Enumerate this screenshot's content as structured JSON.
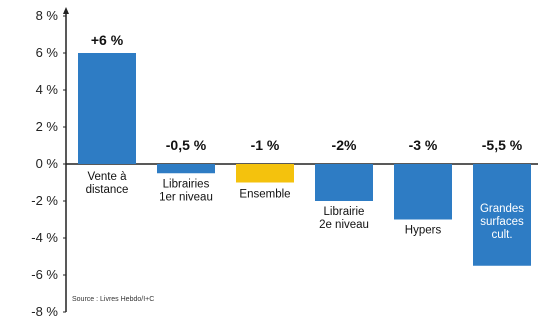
{
  "chart_data": {
    "type": "bar",
    "categories": [
      [
        "Vente à",
        "distance"
      ],
      [
        "Librairies",
        "1er niveau"
      ],
      [
        "Ensemble"
      ],
      [
        "Librairie",
        "2e niveau"
      ],
      [
        "Hypers"
      ],
      [
        "Grandes",
        "surfaces",
        "cult."
      ]
    ],
    "values": [
      6,
      -0.5,
      -1,
      -2,
      -3,
      -5.5
    ],
    "value_labels": [
      "+6 %",
      "-0,5 %",
      "-1 %",
      "-2%",
      "-3 %",
      "-5,5 %"
    ],
    "y_ticks": [
      8,
      6,
      4,
      2,
      0,
      -2,
      -4,
      -6,
      -8
    ],
    "y_tick_labels": [
      "8 %",
      "6 %",
      "4 %",
      "2 %",
      "0 %",
      "-2 %",
      "-4 %",
      "-6 %",
      "-8 %"
    ],
    "ylim": [
      -8,
      8
    ],
    "bar_colors": [
      "#2e7cc4",
      "#2e7cc4",
      "#f4c20d",
      "#2e7cc4",
      "#2e7cc4",
      "#2e7cc4"
    ],
    "grid": false,
    "source": "Source : Livres Hebdo/I+C"
  }
}
